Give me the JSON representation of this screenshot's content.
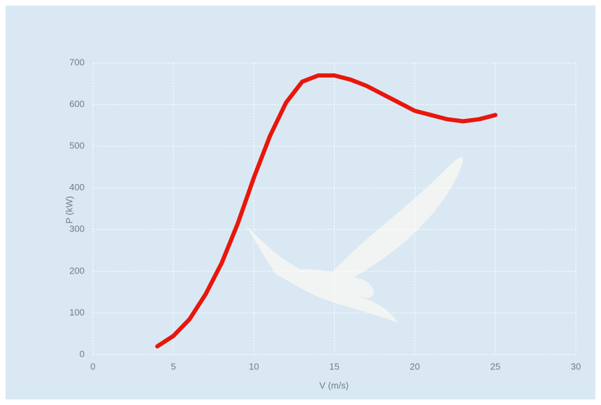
{
  "chart_data": {
    "type": "line",
    "x_label": "V (m/s)",
    "y_label": "P (kW)",
    "x": [
      4,
      5,
      6,
      7,
      8,
      9,
      10,
      11,
      12,
      13,
      14,
      15,
      16,
      17,
      18,
      19,
      20,
      21,
      22,
      23,
      24,
      25
    ],
    "series": [
      {
        "color": "#e8160c",
        "values": [
          20,
          45,
          85,
          145,
          220,
          315,
          425,
          525,
          605,
          655,
          670,
          670,
          660,
          645,
          625,
          605,
          585,
          575,
          565,
          560,
          565,
          575
        ]
      }
    ],
    "xlim": [
      0,
      30
    ],
    "xticks": [
      0,
      5,
      10,
      15,
      20,
      25,
      30
    ],
    "ylim": [
      0,
      700
    ],
    "yticks": [
      0,
      100,
      200,
      300,
      400,
      500,
      600,
      700
    ],
    "grid": true
  }
}
